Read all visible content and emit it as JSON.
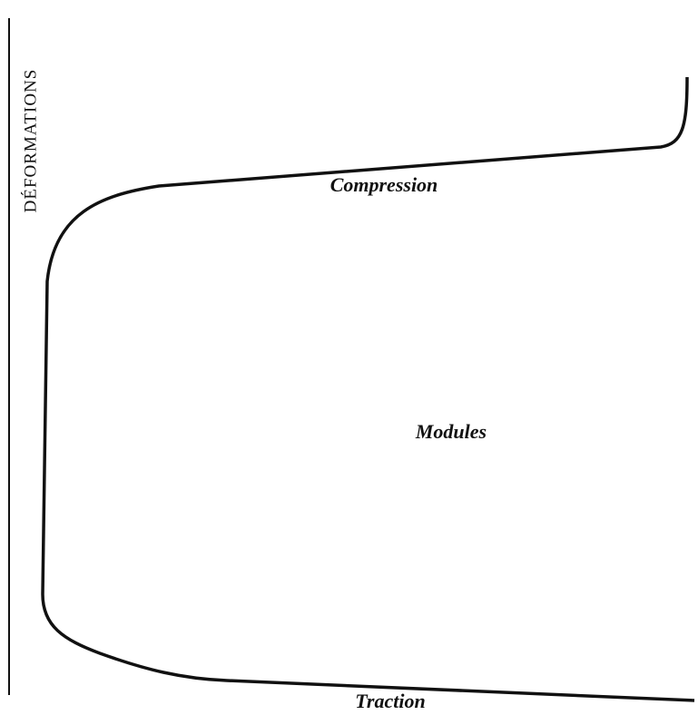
{
  "axis_label": "DÉFORMATIONS",
  "labels": {
    "compression": "Compression",
    "modules": "Modules",
    "traction": "Traction"
  }
}
